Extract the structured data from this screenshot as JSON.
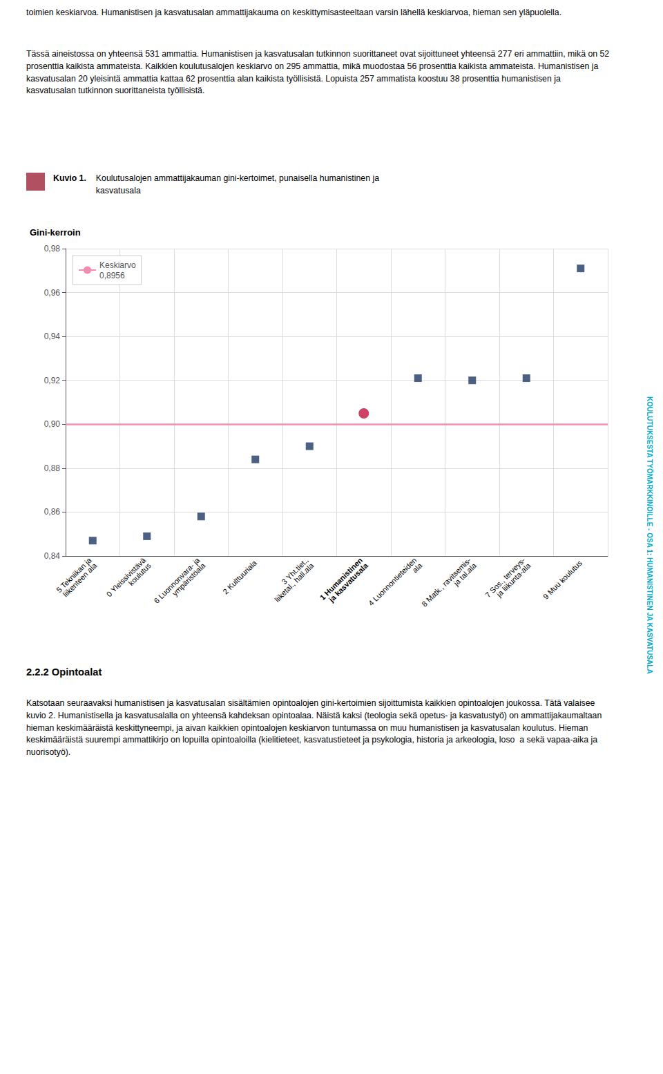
{
  "page": {
    "top_text1": "toimien keskiarvoa. Humanistisen ja kasvatusalan ammattijakauma on keskittymisasteeltaan varsin lähellä keskiarvoa, hieman sen yläpuolella.",
    "top_text2": "Tässä aineistossa on yhteensä 531 ammattia. Humanistisen ja kasvatusalan tutkinnon suorittaneet ovat sijoittuneet yhteensä 277 eri ammattiin, mikä on 52 prosenttia kaikista ammateista. Kaikkien koulutusalojen keskiarvo on 295 ammattia, mikä muodostaa 56 prosenttia kaikista ammateista. Humanistisen ja kasvatusalan 20 yleisintä ammattia kattaa 62 prosenttia alan kaikista työllisistä. Lopuista 257 ammatista koostuu 38 prosenttia humanistisen ja kasvatusalan tutkinnon suorittaneista työllisistä.",
    "section_heading": "2.2.2  Opintoalat",
    "body_text2": "Katsotaan seuraavaksi humanistisen ja kasvatusalan sisältämien opintoalojen gini-kertoimien sijoittumista kaikkien opintoalojen joukossa. Tätä valaisee kuvio 2. Humanistisella ja kasvatusalalla on yhteensä kahdeksan opintoalaa. Näistä kaksi (teologia sekä opetus- ja kasvatustyö) on ammattijakaumaltaan hieman keskimääräistä keskittyneempi, ja aivan kaikkien opintoalojen keskiarvon tuntumassa on muu humanistisen ja kasvatusalan koulutus. Hieman keskimääräistä suurempi ammattikirjo on lopuilla opintoaloilla (kielitieteet, kasvatustieteet ja psykologia, historia ja arkeologia,  loso  a sekä vapaa-aika ja nuorisotyö).",
    "sidebar_text": "KOULUTUKSESTA TYÖMARKKINOILLE - OSA 1: HUMANISTINEN JA KASVATUSALA",
    "sidebar_color": "#00aacc",
    "swatch_color": "#b05060"
  },
  "chart_data": {
    "type": "scatter",
    "figure_label": "Kuvio 1.",
    "title": "Koulutusalojen ammattijakauman gini-kertoimet, punaisella humanistinen ja\nkasvatusala",
    "ylabel": "Gini-kerroin",
    "categories": [
      "5 Tekniikan ja\nliikenteen ala",
      "0 Yleissivistävä\nkoulutus",
      "6 Luonnonvara- ja\nympäristöala",
      "2 Kulttuuriala",
      "3 Yht.tiet.,\nliiketal., hall.ala",
      "1 Humanistinen\nja kasvatusala",
      "4 Luonnontieteiden\nala",
      "8 Matk., ravitsemis-\nja tal.ala",
      "7 Sos., terveys-\nja liikunta-ala",
      "9 Muu koulutus"
    ],
    "series": [
      {
        "color": "#1f3864",
        "marker": "square",
        "values": [
          0.847,
          0.849,
          0.858,
          0.884,
          0.89,
          null,
          0.921,
          0.92,
          0.921,
          0.971
        ]
      },
      {
        "color": "#c0133e",
        "marker": "circle",
        "values": [
          null,
          null,
          null,
          null,
          null,
          0.905,
          null,
          null,
          null,
          null
        ]
      }
    ],
    "avg_line": {
      "value": 0.8956,
      "label": "Keskiarvo\n0,8956",
      "color": "#f28cb0"
    },
    "ylim": [
      0.84,
      0.98
    ],
    "yticks": [
      {
        "value": 0.84,
        "label": "0,84"
      },
      {
        "value": 0.86,
        "label": "0,86"
      },
      {
        "value": 0.88,
        "label": "0,88"
      },
      {
        "value": 0.9,
        "label": "0,90"
      },
      {
        "value": 0.92,
        "label": "0,92"
      },
      {
        "value": 0.94,
        "label": "0,94"
      },
      {
        "value": 0.96,
        "label": "0,96"
      },
      {
        "value": 0.98,
        "label": "0,98"
      }
    ],
    "grid": true,
    "legend": "upper left"
  }
}
